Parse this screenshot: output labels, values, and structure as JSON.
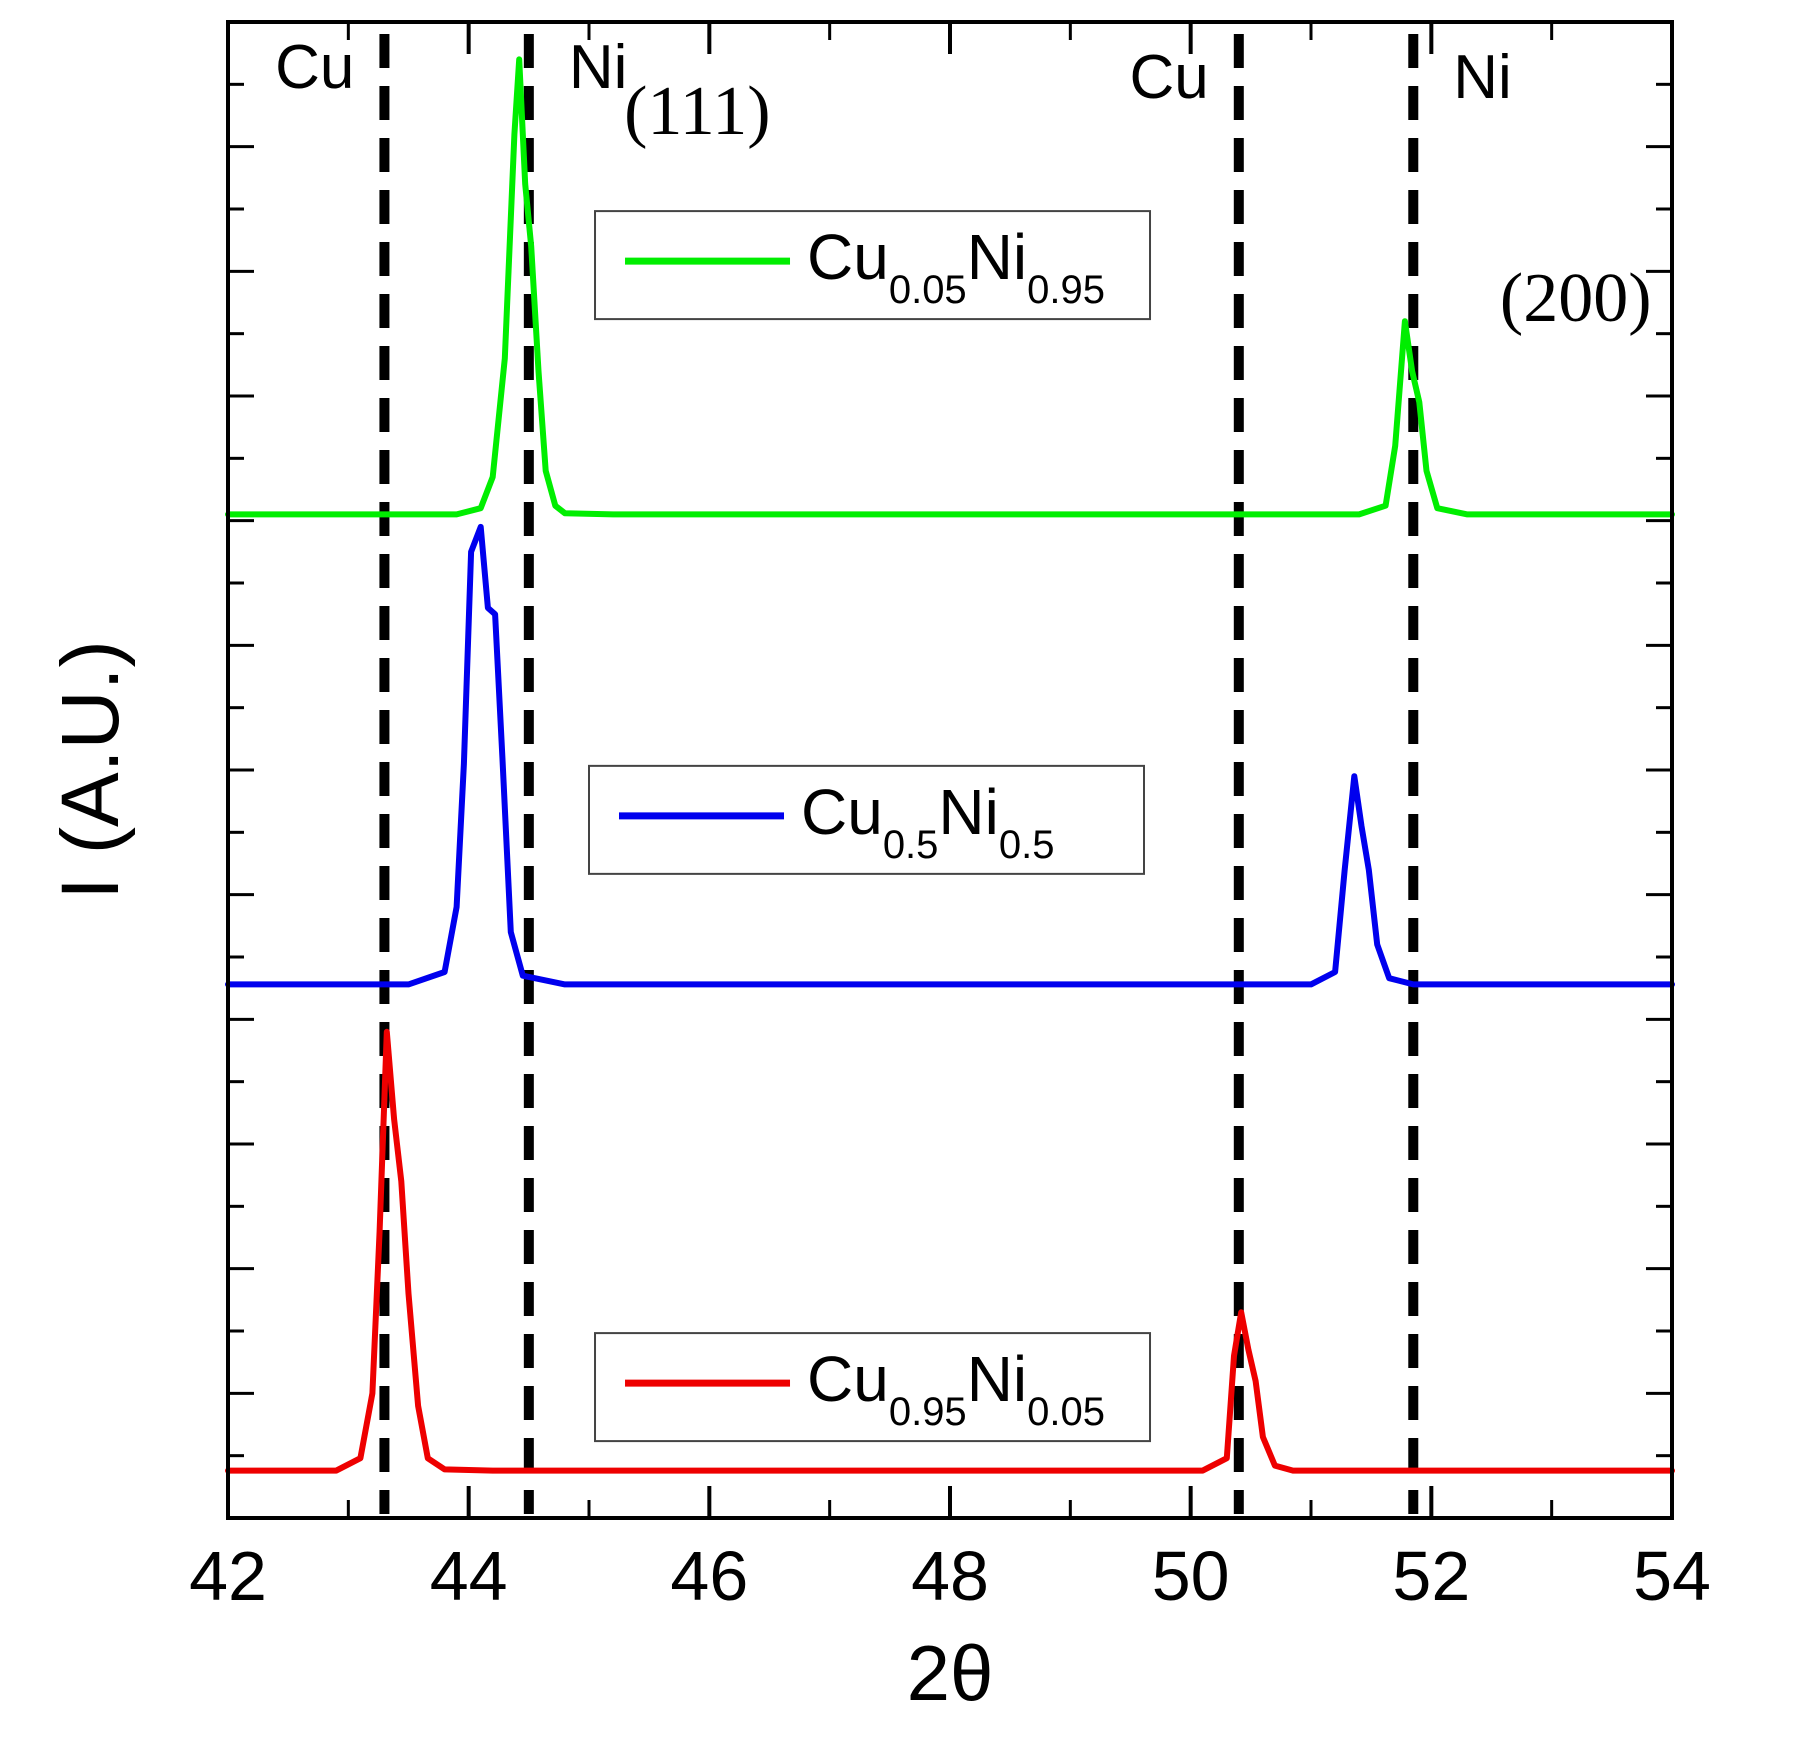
{
  "chart_data": {
    "type": "line",
    "xlabel": "2θ",
    "ylabel": "I (A.U.)",
    "xlim": [
      42,
      54
    ],
    "ylim": [
      0,
      12
    ],
    "xticks": [
      42,
      44,
      46,
      48,
      50,
      52,
      54
    ],
    "xtick_labels": [
      "42",
      "44",
      "46",
      "48",
      "50",
      "52",
      "54"
    ],
    "reference_lines": [
      {
        "x": 43.3,
        "label": "Cu"
      },
      {
        "x": 44.5,
        "label": "Ni"
      },
      {
        "x": 50.4,
        "label": "Cu"
      },
      {
        "x": 51.85,
        "label": "Ni"
      }
    ],
    "peak_labels": [
      {
        "text": "(111)",
        "x": 45.9,
        "y": 11.1
      },
      {
        "text": "(200)",
        "x": 53.2,
        "y": 9.6
      }
    ],
    "series": [
      {
        "name": "Cu0.05Ni0.95",
        "label_main": [
          "Cu",
          "Ni"
        ],
        "label_subs": [
          "0.05",
          "0.95"
        ],
        "color": "#00ee00",
        "baseline": 8.05,
        "x": [
          42.0,
          43.9,
          44.1,
          44.2,
          44.3,
          44.38,
          44.42,
          44.47,
          44.52,
          44.58,
          44.64,
          44.72,
          44.8,
          45.2,
          51.4,
          51.62,
          51.7,
          51.78,
          51.84,
          51.9,
          51.96,
          52.05,
          52.3,
          54.0
        ],
        "values": [
          8.05,
          8.05,
          8.1,
          8.35,
          9.3,
          11.1,
          11.7,
          10.7,
          10.2,
          9.2,
          8.4,
          8.12,
          8.06,
          8.05,
          8.05,
          8.12,
          8.6,
          9.6,
          9.2,
          8.95,
          8.4,
          8.1,
          8.05,
          8.05
        ]
      },
      {
        "name": "Cu0.5Ni0.5",
        "label_main": [
          "Cu",
          "Ni"
        ],
        "label_subs": [
          "0.5",
          "0.5"
        ],
        "color": "#0000ee",
        "baseline": 4.28,
        "x": [
          42.0,
          43.5,
          43.8,
          43.9,
          43.96,
          44.02,
          44.1,
          44.16,
          44.22,
          44.28,
          44.35,
          44.45,
          44.8,
          51.0,
          51.2,
          51.28,
          51.36,
          51.42,
          51.48,
          51.55,
          51.65,
          51.85,
          54.0
        ],
        "values": [
          4.28,
          4.28,
          4.38,
          4.9,
          6.05,
          7.75,
          7.95,
          7.3,
          7.25,
          6.1,
          4.7,
          4.35,
          4.28,
          4.28,
          4.38,
          5.2,
          5.95,
          5.55,
          5.2,
          4.6,
          4.33,
          4.28,
          4.28
        ]
      },
      {
        "name": "Cu0.95Ni0.05",
        "label_main": [
          "Cu",
          "Ni"
        ],
        "label_subs": [
          "0.95",
          "0.05"
        ],
        "color": "#ee0000",
        "baseline": 0.38,
        "x": [
          42.0,
          42.9,
          43.1,
          43.2,
          43.26,
          43.32,
          43.38,
          43.44,
          43.5,
          43.58,
          43.66,
          43.8,
          44.2,
          50.1,
          50.3,
          50.36,
          50.42,
          50.48,
          50.54,
          50.6,
          50.7,
          50.85,
          54.0
        ],
        "values": [
          0.38,
          0.38,
          0.48,
          1.0,
          2.3,
          3.9,
          3.2,
          2.7,
          1.8,
          0.9,
          0.48,
          0.39,
          0.38,
          0.38,
          0.48,
          1.3,
          1.65,
          1.35,
          1.1,
          0.65,
          0.42,
          0.38,
          0.38
        ]
      }
    ]
  }
}
